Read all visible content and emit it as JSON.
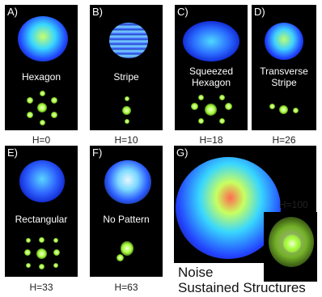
{
  "panels": [
    {
      "label": "A)",
      "name": "Hexagon",
      "h": "H=0"
    },
    {
      "label": "B)",
      "name": "Stripe",
      "h": "H=10"
    },
    {
      "label": "C)",
      "name": "Squeezed\nHexagon",
      "h": "H=18"
    },
    {
      "label": "D)",
      "name": "Transverse\nStripe",
      "h": "H=26"
    },
    {
      "label": "E)",
      "name": "Rectangular",
      "h": "H=33"
    },
    {
      "label": "F)",
      "name": "No Pattern",
      "h": "H=63"
    },
    {
      "label": "G)",
      "name": "",
      "h": "H=100"
    }
  ],
  "caption": {
    "line1": "Noise",
    "line2": "Sustained Structures"
  },
  "colors": {
    "background": "#000000",
    "blue": "#1d3dff",
    "cyan": "#36c8ff",
    "green": "#a6ff3a",
    "red": "#ff4a3a"
  }
}
